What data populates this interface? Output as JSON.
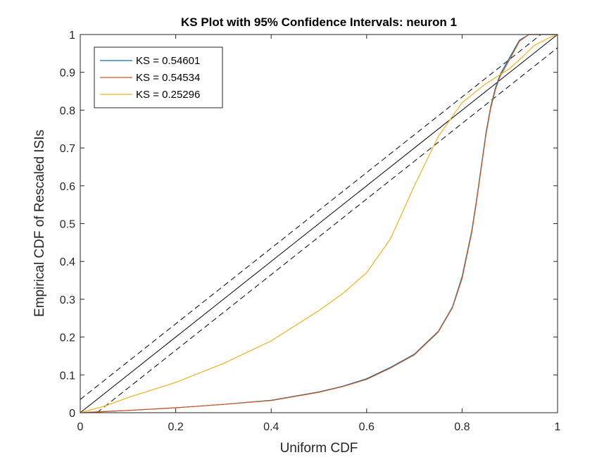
{
  "chart_data": {
    "type": "line",
    "title": "KS Plot with 95% Confidence Intervals: neuron 1",
    "xlabel": "Uniform CDF",
    "ylabel": "Empirical CDF of Rescaled ISIs",
    "xlim": [
      0,
      1
    ],
    "ylim": [
      0,
      1
    ],
    "x_ticks": [
      "0",
      "0.2",
      "0.4",
      "0.6",
      "0.8",
      "1"
    ],
    "y_ticks": [
      "0",
      "0.1",
      "0.2",
      "0.3",
      "0.4",
      "0.5",
      "0.6",
      "0.7",
      "0.8",
      "0.9",
      "1"
    ],
    "grid": false,
    "legend_position": "top-left",
    "series": [
      {
        "name": "KS = 0.54601",
        "color": "#0072BD",
        "x": [
          0,
          0.05,
          0.1,
          0.2,
          0.3,
          0.4,
          0.5,
          0.55,
          0.6,
          0.65,
          0.7,
          0.75,
          0.78,
          0.8,
          0.82,
          0.83,
          0.84,
          0.85,
          0.86,
          0.87,
          0.88,
          0.9,
          0.92,
          0.94,
          0.96,
          1.0
        ],
        "y": [
          0,
          0.003,
          0.006,
          0.013,
          0.022,
          0.033,
          0.055,
          0.07,
          0.09,
          0.12,
          0.155,
          0.215,
          0.28,
          0.36,
          0.48,
          0.56,
          0.65,
          0.74,
          0.81,
          0.86,
          0.895,
          0.94,
          0.985,
          1.0,
          1.0,
          1.0
        ]
      },
      {
        "name": "KS = 0.54534",
        "color": "#D95319",
        "x": [
          0,
          0.05,
          0.1,
          0.2,
          0.3,
          0.4,
          0.5,
          0.55,
          0.6,
          0.65,
          0.7,
          0.75,
          0.78,
          0.8,
          0.82,
          0.83,
          0.84,
          0.85,
          0.86,
          0.87,
          0.88,
          0.9,
          0.92,
          0.94,
          0.96,
          1.0
        ],
        "y": [
          0,
          0.003,
          0.006,
          0.013,
          0.022,
          0.032,
          0.054,
          0.069,
          0.088,
          0.118,
          0.153,
          0.213,
          0.278,
          0.355,
          0.475,
          0.555,
          0.645,
          0.735,
          0.805,
          0.855,
          0.89,
          0.935,
          0.982,
          1.0,
          1.0,
          1.0
        ]
      },
      {
        "name": "KS = 0.25296",
        "color": "#EDB120",
        "x": [
          0,
          0.05,
          0.1,
          0.15,
          0.2,
          0.25,
          0.3,
          0.35,
          0.4,
          0.45,
          0.5,
          0.55,
          0.6,
          0.65,
          0.7,
          0.75,
          0.8,
          0.85,
          0.9,
          0.93,
          0.95,
          0.98,
          1.0
        ],
        "y": [
          0,
          0.017,
          0.04,
          0.06,
          0.08,
          0.105,
          0.13,
          0.16,
          0.19,
          0.23,
          0.27,
          0.315,
          0.37,
          0.46,
          0.6,
          0.73,
          0.82,
          0.87,
          0.91,
          0.945,
          0.97,
          0.99,
          1.0
        ]
      }
    ],
    "reference_lines": [
      {
        "style": "solid",
        "color": "#000000",
        "x": [
          0,
          1
        ],
        "y": [
          0,
          1
        ]
      },
      {
        "style": "dashed",
        "color": "#000000",
        "x": [
          0,
          0.965
        ],
        "y": [
          0.035,
          1
        ]
      },
      {
        "style": "dashed",
        "color": "#000000",
        "x": [
          0.035,
          1
        ],
        "y": [
          0,
          0.965
        ]
      }
    ]
  }
}
